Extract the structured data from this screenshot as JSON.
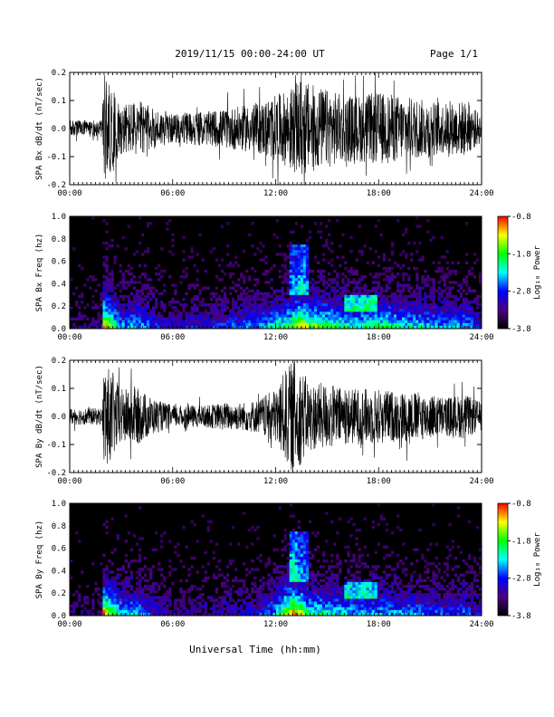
{
  "header": {
    "date_range": "2019/11/15  00:00-24:00 UT",
    "page": "Page 1/1"
  },
  "x_axis": {
    "label": "Universal Time (hh:mm)",
    "tick_labels": [
      "00:00",
      "06:00",
      "12:00",
      "18:00",
      "24:00"
    ],
    "range_hours": [
      0,
      24
    ]
  },
  "colors": {
    "background": "#ffffff",
    "trace": "#000000",
    "spectrogram_low": "#000000",
    "colormap": [
      "#000000",
      "#4b0082",
      "#0000ff",
      "#00ffff",
      "#00ff00",
      "#ffff00",
      "#ff0000"
    ]
  },
  "chart_data": [
    {
      "type": "line",
      "name": "bx-trace",
      "ylabel": "SPA Bx dB/dt (nT/sec)",
      "ylim": [
        -0.2,
        0.2
      ],
      "y_ticks": [
        "0.2",
        "0.1",
        "0.0",
        "-0.1",
        "-0.2"
      ],
      "envelope": {
        "hours": [
          0,
          1,
          1.9,
          2.0,
          2.5,
          3,
          4,
          5,
          6,
          7,
          8,
          9,
          10,
          11,
          12,
          12.5,
          13,
          13.5,
          14,
          15,
          16,
          17,
          18,
          19,
          20,
          21,
          22,
          23,
          24
        ],
        "amplitude": [
          0.03,
          0.03,
          0.03,
          0.2,
          0.14,
          0.09,
          0.1,
          0.07,
          0.05,
          0.06,
          0.06,
          0.07,
          0.08,
          0.09,
          0.12,
          0.13,
          0.15,
          0.18,
          0.16,
          0.14,
          0.12,
          0.12,
          0.13,
          0.12,
          0.11,
          0.1,
          0.09,
          0.1,
          0.05
        ]
      }
    },
    {
      "type": "heatmap",
      "name": "bx-spectrogram",
      "ylabel": "SPA Bx Freq (hz)",
      "ylim": [
        0.0,
        1.0
      ],
      "y_ticks": [
        "1.0",
        "0.8",
        "0.6",
        "0.4",
        "0.2",
        "0.0"
      ],
      "colorbar": {
        "label": "Log₁₀ Power",
        "ticks": [
          "-0.8",
          "-1.8",
          "-2.8",
          "-3.8"
        ],
        "range": [
          -3.8,
          -0.8
        ]
      }
    },
    {
      "type": "line",
      "name": "by-trace",
      "ylabel": "SPA By dB/dt (nT/sec)",
      "ylim": [
        -0.2,
        0.2
      ],
      "y_ticks": [
        "0.2",
        "0.1",
        "0.0",
        "-0.1",
        "-0.2"
      ],
      "envelope": {
        "hours": [
          0,
          1,
          1.9,
          2.0,
          2.5,
          3,
          4,
          5,
          6,
          7,
          8,
          9,
          10,
          11,
          12,
          12.5,
          13,
          13.5,
          14,
          15,
          16,
          17,
          18,
          19,
          20,
          21,
          22,
          23,
          24
        ],
        "amplitude": [
          0.03,
          0.03,
          0.03,
          0.2,
          0.15,
          0.1,
          0.1,
          0.06,
          0.04,
          0.04,
          0.04,
          0.05,
          0.05,
          0.06,
          0.1,
          0.16,
          0.2,
          0.17,
          0.12,
          0.12,
          0.1,
          0.1,
          0.1,
          0.09,
          0.09,
          0.08,
          0.07,
          0.08,
          0.05
        ]
      }
    },
    {
      "type": "heatmap",
      "name": "by-spectrogram",
      "ylabel": "SPA By Freq (hz)",
      "ylim": [
        0.0,
        1.0
      ],
      "y_ticks": [
        "1.0",
        "0.8",
        "0.6",
        "0.4",
        "0.2",
        "0.0"
      ],
      "colorbar": {
        "label": "Log₁₀ Power",
        "ticks": [
          "-0.8",
          "-1.8",
          "-2.8",
          "-3.8"
        ],
        "range": [
          -3.8,
          -0.8
        ]
      }
    }
  ]
}
